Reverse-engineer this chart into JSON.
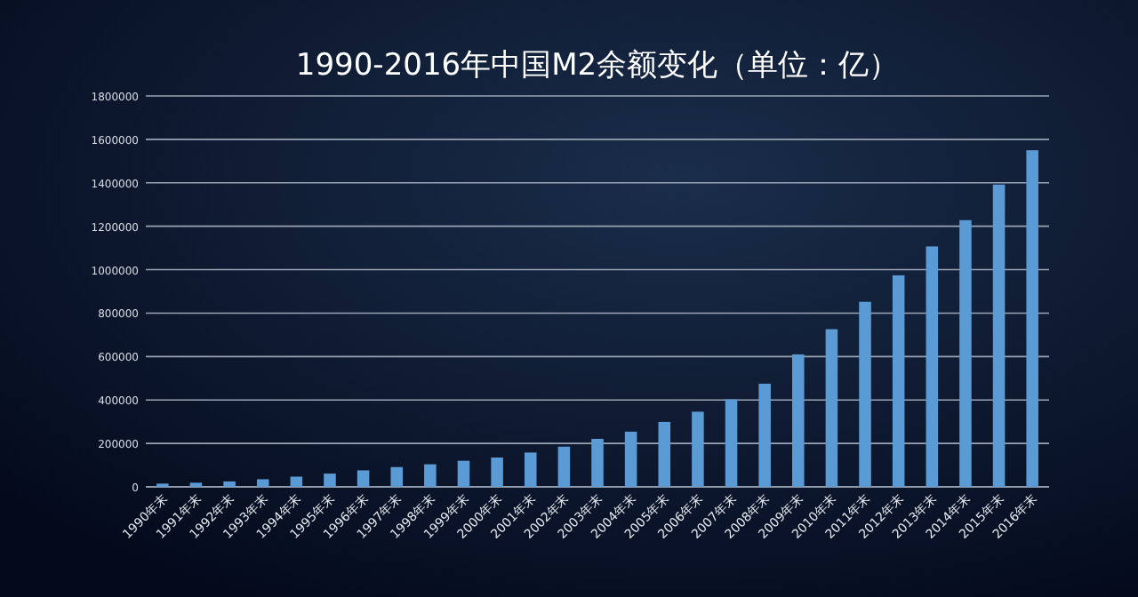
{
  "chart_data": {
    "type": "bar",
    "title": "1990-2016年中国M2余额变化（单位：亿）",
    "categories": [
      "1990年末",
      "1991年末",
      "1992年末",
      "1993年末",
      "1994年末",
      "1995年末",
      "1996年末",
      "1997年末",
      "1998年末",
      "1999年末",
      "2000年末",
      "2001年末",
      "2002年末",
      "2003年末",
      "2004年末",
      "2005年末",
      "2006年末",
      "2007年末",
      "2008年末",
      "2009年末",
      "2010年末",
      "2011年末",
      "2012年末",
      "2013年末",
      "2014年末",
      "2015年末",
      "2016年末"
    ],
    "values": [
      15000,
      19000,
      25000,
      35000,
      47000,
      61000,
      76000,
      91000,
      104000,
      120000,
      135000,
      158000,
      185000,
      221000,
      254000,
      299000,
      346000,
      403000,
      475000,
      610000,
      726000,
      852000,
      974000,
      1107000,
      1228000,
      1392000,
      1550000
    ],
    "color": "#5b9bd5",
    "ylim": [
      0,
      1800000
    ],
    "yticks": [
      0,
      200000,
      400000,
      600000,
      800000,
      1000000,
      1200000,
      1400000,
      1600000,
      1800000
    ],
    "grid": true
  }
}
